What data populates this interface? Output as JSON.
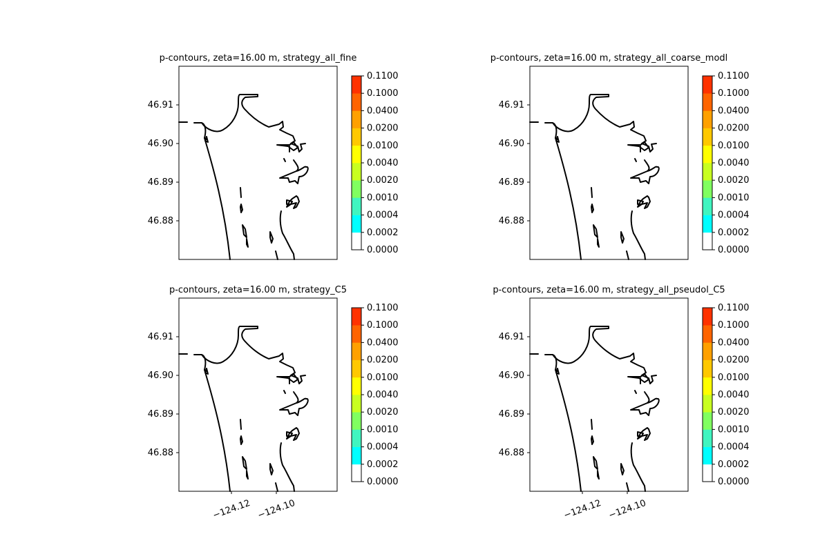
{
  "figure": {
    "panels": [
      {
        "title": "p-contours, zeta=16.00 m, strategy_all_fine"
      },
      {
        "title": "p-contours, zeta=16.00 m, strategy_all_coarse_modl"
      },
      {
        "title": "p-contours, zeta=16.00 m, strategy_C5"
      },
      {
        "title": "p-contours, zeta=16.00 m, strategy_all_pseudol_C5"
      }
    ]
  },
  "chart_data": {
    "type": "contour-map",
    "grid": "2x2",
    "y_ticks": [
      "46.91",
      "46.90",
      "46.89",
      "46.88"
    ],
    "y_tick_values": [
      46.91,
      46.9,
      46.89,
      46.88
    ],
    "x_ticks": [
      "−124.12",
      "−124.10"
    ],
    "x_tick_values": [
      -124.12,
      -124.1
    ],
    "x_tick_rotation_deg": -20,
    "x_ticks_shown_on": "bottom row only",
    "colorbar": {
      "labels": [
        "0.0000",
        "0.0002",
        "0.0004",
        "0.0010",
        "0.0020",
        "0.0040",
        "0.0100",
        "0.0200",
        "0.0400",
        "0.1000",
        "0.1100"
      ],
      "levels": [
        0.0,
        0.0002,
        0.0004,
        0.001,
        0.002,
        0.004,
        0.01,
        0.02,
        0.04,
        0.1,
        0.11
      ],
      "colors": [
        "#ffffff",
        "#00ffff",
        "#40f5c0",
        "#80ff60",
        "#c8ff20",
        "#ffff00",
        "#ffc800",
        "#ffa000",
        "#ff6400",
        "#ff3200",
        "#ff0000"
      ]
    },
    "coastline_color": "#000000",
    "filled_contours_visible": false
  }
}
